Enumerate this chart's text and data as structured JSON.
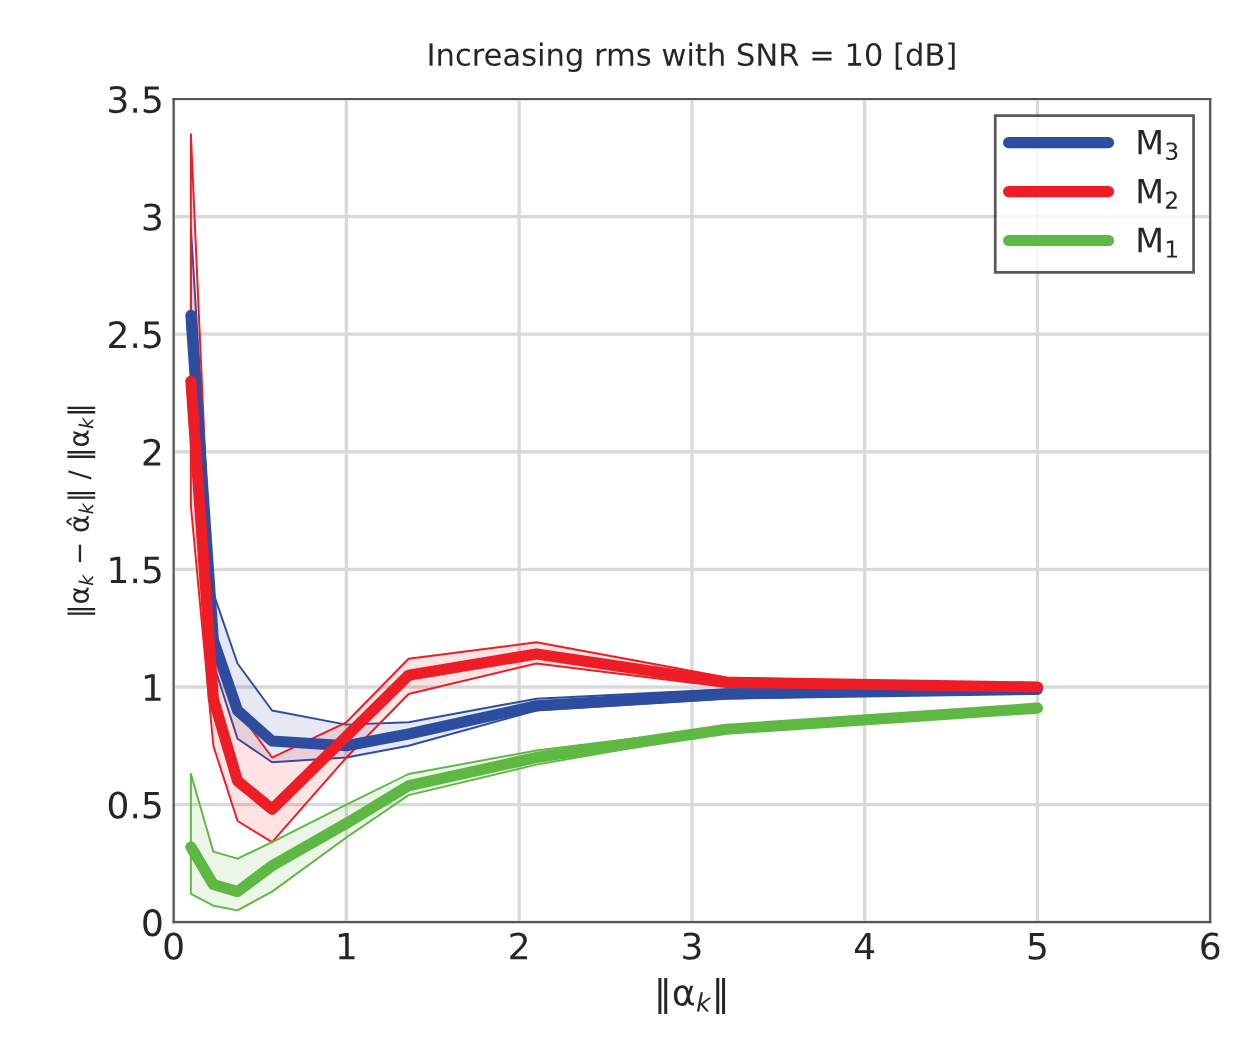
{
  "chart_data": {
    "type": "line",
    "title": "Increasing rms with SNR = 10 [dB]",
    "xlabel": "‖α$_{k}$‖",
    "ylabel": "‖α$_{k}$ − α̂$_{k}$‖ / ‖α$_{k}$‖",
    "x": [
      0.1,
      0.23,
      0.37,
      0.57,
      1.0,
      1.36,
      2.1,
      3.2,
      5
    ],
    "series": [
      {
        "name": "M$_{3}$",
        "color": "#2e4da0",
        "values": [
          2.58,
          1.2,
          0.9,
          0.77,
          0.75,
          0.8,
          0.92,
          0.97,
          0.99
        ],
        "lower": [
          2.5,
          1.1,
          0.78,
          0.68,
          0.7,
          0.75,
          0.9,
          0.95,
          0.98
        ],
        "upper": [
          2.95,
          1.4,
          1.1,
          0.9,
          0.84,
          0.85,
          0.95,
          0.99,
          1.0
        ]
      },
      {
        "name": "M$_{2}$",
        "color": "#ee1c25",
        "values": [
          2.3,
          0.95,
          0.6,
          0.48,
          0.79,
          1.05,
          1.14,
          1.02,
          1.0
        ],
        "lower": [
          1.77,
          0.75,
          0.43,
          0.34,
          0.7,
          0.97,
          1.1,
          1.0,
          0.99
        ],
        "upper": [
          3.35,
          1.2,
          0.9,
          0.7,
          0.85,
          1.12,
          1.19,
          1.04,
          1.01
        ]
      },
      {
        "name": "M$_{1}$",
        "color": "#5fb844",
        "values": [
          0.32,
          0.16,
          0.13,
          0.24,
          0.42,
          0.58,
          0.7,
          0.82,
          0.91
        ],
        "lower": [
          0.12,
          0.07,
          0.05,
          0.13,
          0.36,
          0.54,
          0.67,
          0.81,
          0.9
        ],
        "upper": [
          0.63,
          0.3,
          0.27,
          0.34,
          0.5,
          0.63,
          0.73,
          0.83,
          0.92
        ]
      }
    ],
    "xlim": [
      0,
      6
    ],
    "ylim": [
      0,
      3.5
    ],
    "xticks": [
      0,
      1,
      2,
      3,
      4,
      5,
      6
    ],
    "yticks": [
      0,
      0.5,
      1,
      1.5,
      2,
      2.5,
      3,
      3.5
    ],
    "grid": true,
    "legend": "top right",
    "marker": "none",
    "line_style": "solid"
  }
}
